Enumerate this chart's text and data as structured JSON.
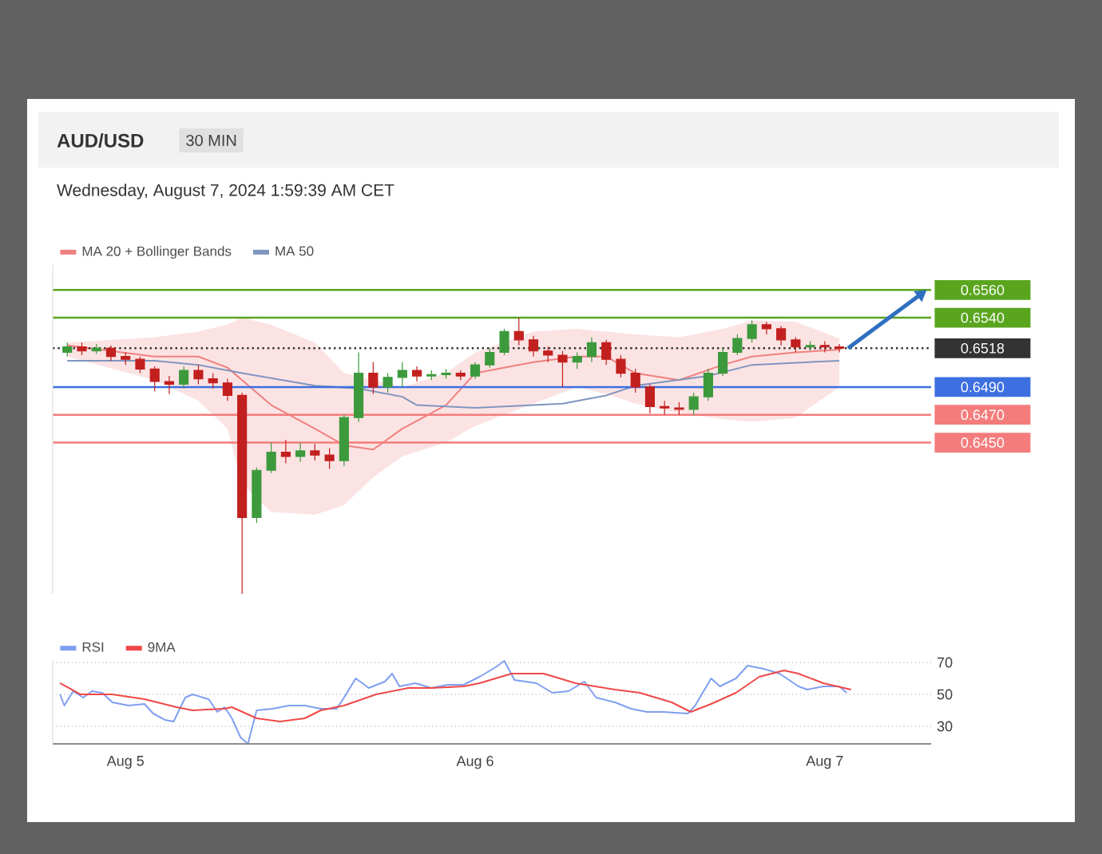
{
  "chart_data": [
    {
      "type": "candlestick",
      "title": "AUD/USD",
      "subtitle": "Wednesday, August 7, 2024 1:59:39 AM CET",
      "annotations": [
        "30 MIN"
      ],
      "x": [
        "2024-08-04T20:00",
        "2024-08-04T21:00",
        "2024-08-04T22:00",
        "2024-08-04T23:00",
        "2024-08-05T00:00",
        "2024-08-05T01:00",
        "2024-08-05T02:00",
        "2024-08-05T03:00",
        "2024-08-05T04:00",
        "2024-08-05T05:00",
        "2024-08-05T06:00",
        "2024-08-05T07:00",
        "2024-08-05T08:00",
        "2024-08-05T09:00",
        "2024-08-05T10:00",
        "2024-08-05T11:00",
        "2024-08-05T12:00",
        "2024-08-05T13:00",
        "2024-08-05T14:00",
        "2024-08-05T15:00",
        "2024-08-05T16:00",
        "2024-08-05T17:00",
        "2024-08-05T18:00",
        "2024-08-05T19:00",
        "2024-08-05T20:00",
        "2024-08-05T21:00",
        "2024-08-05T22:00",
        "2024-08-05T23:00",
        "2024-08-06T00:00",
        "2024-08-06T01:00",
        "2024-08-06T02:00",
        "2024-08-06T03:00",
        "2024-08-06T04:00",
        "2024-08-06T05:00",
        "2024-08-06T06:00",
        "2024-08-06T07:00",
        "2024-08-06T08:00",
        "2024-08-06T09:00",
        "2024-08-06T10:00",
        "2024-08-06T11:00",
        "2024-08-06T12:00",
        "2024-08-06T13:00",
        "2024-08-06T14:00",
        "2024-08-06T15:00",
        "2024-08-06T16:00",
        "2024-08-06T17:00",
        "2024-08-06T18:00",
        "2024-08-06T19:00",
        "2024-08-06T20:00",
        "2024-08-06T21:00",
        "2024-08-06T22:00",
        "2024-08-06T23:00",
        "2024-08-07T00:00",
        "2024-08-07T01:00"
      ],
      "ohlc": [
        [
          0.6515,
          0.6522,
          0.6512,
          0.6519
        ],
        [
          0.6519,
          0.6522,
          0.6513,
          0.6516
        ],
        [
          0.6516,
          0.6521,
          0.6514,
          0.6518
        ],
        [
          0.6518,
          0.652,
          0.6509,
          0.6512
        ],
        [
          0.6512,
          0.6515,
          0.6506,
          0.651
        ],
        [
          0.651,
          0.6512,
          0.65,
          0.6503
        ],
        [
          0.6503,
          0.6505,
          0.6487,
          0.6494
        ],
        [
          0.6494,
          0.6498,
          0.6485,
          0.6492
        ],
        [
          0.6492,
          0.6505,
          0.6489,
          0.6502
        ],
        [
          0.6502,
          0.6506,
          0.6492,
          0.6496
        ],
        [
          0.6496,
          0.65,
          0.6489,
          0.6493
        ],
        [
          0.6493,
          0.6496,
          0.648,
          0.6484
        ],
        [
          0.6484,
          0.6486,
          0.6341,
          0.6396
        ],
        [
          0.6396,
          0.6432,
          0.6392,
          0.643
        ],
        [
          0.643,
          0.645,
          0.6428,
          0.6443
        ],
        [
          0.6443,
          0.6452,
          0.6435,
          0.644
        ],
        [
          0.644,
          0.645,
          0.6436,
          0.6444
        ],
        [
          0.6444,
          0.6449,
          0.6437,
          0.6441
        ],
        [
          0.6441,
          0.6446,
          0.6431,
          0.6437
        ],
        [
          0.6437,
          0.647,
          0.6433,
          0.6468
        ],
        [
          0.6468,
          0.6515,
          0.6465,
          0.65
        ],
        [
          0.65,
          0.6508,
          0.6485,
          0.649
        ],
        [
          0.649,
          0.65,
          0.6486,
          0.6497
        ],
        [
          0.6497,
          0.6508,
          0.649,
          0.6502
        ],
        [
          0.6502,
          0.6505,
          0.6494,
          0.6498
        ],
        [
          0.6498,
          0.6502,
          0.6495,
          0.6499
        ],
        [
          0.6499,
          0.6503,
          0.6496,
          0.65
        ],
        [
          0.65,
          0.6502,
          0.6495,
          0.6498
        ],
        [
          0.6498,
          0.6508,
          0.6496,
          0.6506
        ],
        [
          0.6506,
          0.6518,
          0.6504,
          0.6515
        ],
        [
          0.6515,
          0.6532,
          0.6513,
          0.653
        ],
        [
          0.653,
          0.654,
          0.652,
          0.6524
        ],
        [
          0.6524,
          0.6527,
          0.6512,
          0.6516
        ],
        [
          0.6516,
          0.6519,
          0.6508,
          0.6513
        ],
        [
          0.6513,
          0.6516,
          0.649,
          0.6508
        ],
        [
          0.6508,
          0.6515,
          0.6503,
          0.6512
        ],
        [
          0.6512,
          0.6526,
          0.6508,
          0.6522
        ],
        [
          0.6522,
          0.6524,
          0.6506,
          0.651
        ],
        [
          0.651,
          0.6513,
          0.6497,
          0.65
        ],
        [
          0.65,
          0.6503,
          0.6486,
          0.649
        ],
        [
          0.649,
          0.6492,
          0.6471,
          0.6476
        ],
        [
          0.6476,
          0.648,
          0.647,
          0.6475
        ],
        [
          0.6475,
          0.6479,
          0.647,
          0.6474
        ],
        [
          0.6474,
          0.6486,
          0.647,
          0.6483
        ],
        [
          0.6483,
          0.6503,
          0.648,
          0.65
        ],
        [
          0.65,
          0.6518,
          0.6498,
          0.6515
        ],
        [
          0.6515,
          0.6528,
          0.6513,
          0.6525
        ],
        [
          0.6525,
          0.6538,
          0.6522,
          0.6535
        ],
        [
          0.6535,
          0.6537,
          0.6528,
          0.6532
        ],
        [
          0.6532,
          0.6534,
          0.652,
          0.6524
        ],
        [
          0.6524,
          0.6526,
          0.6515,
          0.6519
        ],
        [
          0.6519,
          0.6523,
          0.6516,
          0.652
        ],
        [
          0.652,
          0.6523,
          0.6515,
          0.6519
        ],
        [
          0.6519,
          0.6521,
          0.6515,
          0.6518
        ]
      ],
      "series": [
        {
          "type": "line",
          "name": "MA 20 + Bollinger Bands",
          "color": "#f08080",
          "x": [
            "2024-08-04T20:00",
            "2024-08-05T02:00",
            "2024-08-05T05:00",
            "2024-08-05T07:00",
            "2024-08-05T08:00",
            "2024-08-05T10:00",
            "2024-08-05T13:00",
            "2024-08-05T15:00",
            "2024-08-05T17:00",
            "2024-08-05T19:00",
            "2024-08-05T22:00",
            "2024-08-06T00:00",
            "2024-08-06T04:00",
            "2024-08-06T07:00",
            "2024-08-06T09:00",
            "2024-08-06T11:00",
            "2024-08-06T14:00",
            "2024-08-06T17:00",
            "2024-08-06T19:00",
            "2024-08-06T22:00",
            "2024-08-07T01:00"
          ],
          "values": [
            0.652,
            0.6512,
            0.6512,
            0.6504,
            0.6495,
            0.6477,
            0.646,
            0.6448,
            0.6445,
            0.646,
            0.6477,
            0.65,
            0.6508,
            0.6512,
            0.6512,
            0.65,
            0.6495,
            0.6506,
            0.6512,
            0.6515,
            0.6517
          ],
          "upper": [
            0.6522,
            0.6526,
            0.653,
            0.6535,
            0.654,
            0.6535,
            0.6522,
            0.65,
            0.6495,
            0.649,
            0.65,
            0.6515,
            0.653,
            0.6532,
            0.653,
            0.6528,
            0.6526,
            0.6532,
            0.6538,
            0.6537,
            0.6525
          ],
          "lower": [
            0.6512,
            0.6495,
            0.648,
            0.646,
            0.642,
            0.64,
            0.6398,
            0.6405,
            0.6425,
            0.644,
            0.645,
            0.6462,
            0.6478,
            0.649,
            0.6485,
            0.6478,
            0.6471,
            0.6467,
            0.6465,
            0.6468,
            0.649
          ]
        },
        {
          "type": "line",
          "name": "MA 50",
          "color": "#7f95bf",
          "x": [
            "2024-08-04T20:00",
            "2024-08-05T02:00",
            "2024-08-05T05:00",
            "2024-08-05T08:00",
            "2024-08-05T13:00",
            "2024-08-05T16:00",
            "2024-08-05T19:00",
            "2024-08-05T20:00",
            "2024-08-06T00:00",
            "2024-08-06T06:00",
            "2024-08-06T09:00",
            "2024-08-06T11:00",
            "2024-08-06T16:00",
            "2024-08-06T19:00",
            "2024-08-07T01:00"
          ],
          "values": [
            0.6509,
            0.6509,
            0.6506,
            0.65,
            0.6491,
            0.6489,
            0.6483,
            0.6477,
            0.6475,
            0.6478,
            0.6484,
            0.6491,
            0.6498,
            0.6506,
            0.6509
          ]
        }
      ],
      "ref_lines": [
        {
          "axis": "y",
          "value": 0.656,
          "color": "#5aa51e"
        },
        {
          "axis": "y",
          "value": 0.654,
          "color": "#5aa51e"
        },
        {
          "axis": "y",
          "value": 0.6518,
          "color": "#333333",
          "line_style": "dotted"
        },
        {
          "axis": "y",
          "value": 0.649,
          "color": "#3d6fe0"
        },
        {
          "axis": "y",
          "value": 0.647,
          "color": "#f47c7c"
        },
        {
          "axis": "y",
          "value": 0.645,
          "color": "#f47c7c"
        }
      ],
      "yticks": [
        {
          "value": 0.645,
          "label": "0.6450"
        },
        {
          "value": 0.647,
          "label": "0.6470"
        },
        {
          "value": 0.649,
          "label": "0.6490"
        },
        {
          "value": 0.6518,
          "label": "0.6518"
        },
        {
          "value": 0.654,
          "label": "0.6540"
        },
        {
          "value": 0.656,
          "label": "0.6560"
        }
      ],
      "xlim": [
        "2024-08-04T19:00",
        "2024-08-07T07:18"
      ],
      "ylim": [
        0.6341,
        0.6578
      ],
      "legend": "top left"
    },
    {
      "type": "line",
      "xlim": [
        "2024-08-04T19:00",
        "2024-08-07T07:18"
      ],
      "ylim": [
        19,
        71
      ],
      "xticks": [
        {
          "value": "2024-08-05",
          "label": "Aug 5"
        },
        {
          "value": "2024-08-06",
          "label": "Aug 6"
        },
        {
          "value": "2024-08-07",
          "label": "Aug 7"
        }
      ],
      "yticks": [
        30,
        50,
        70
      ],
      "grid": "y",
      "legend": "top left",
      "series": [
        {
          "name": "RSI",
          "color": "#7f9ff0",
          "x": [
            "2024-08-04T19:30",
            "2024-08-04T19:48",
            "2024-08-04T20:24",
            "2024-08-04T21:06",
            "2024-08-04T21:42",
            "2024-08-04T22:24",
            "2024-08-04T23:06",
            "2024-08-05T00:12",
            "2024-08-05T01:18",
            "2024-08-05T01:54",
            "2024-08-05T02:42",
            "2024-08-05T03:18",
            "2024-08-05T04:06",
            "2024-08-05T04:36",
            "2024-08-05T05:42",
            "2024-08-05T06:18",
            "2024-08-05T06:48",
            "2024-08-05T07:18",
            "2024-08-05T07:54",
            "2024-08-05T08:24",
            "2024-08-05T09:00",
            "2024-08-05T10:06",
            "2024-08-05T11:12",
            "2024-08-05T12:18",
            "2024-08-05T13:24",
            "2024-08-05T14:30",
            "2024-08-05T15:00",
            "2024-08-05T15:48",
            "2024-08-05T16:42",
            "2024-08-05T17:48",
            "2024-08-05T18:18",
            "2024-08-05T18:48",
            "2024-08-05T19:54",
            "2024-08-05T21:00",
            "2024-08-05T22:06",
            "2024-08-05T23:12",
            "2024-08-06T00:18",
            "2024-08-06T01:24",
            "2024-08-06T02:00",
            "2024-08-06T02:42",
            "2024-08-06T04:12",
            "2024-08-06T05:18",
            "2024-08-06T06:24",
            "2024-08-06T07:30",
            "2024-08-06T08:18",
            "2024-08-06T09:36",
            "2024-08-06T10:42",
            "2024-08-06T11:48",
            "2024-08-06T12:54",
            "2024-08-06T14:36",
            "2024-08-06T15:06",
            "2024-08-06T16:12",
            "2024-08-06T16:48",
            "2024-08-06T17:54",
            "2024-08-06T18:42",
            "2024-08-06T19:48",
            "2024-08-06T20:54",
            "2024-08-06T22:12",
            "2024-08-06T22:48",
            "2024-08-06T23:54",
            "2024-08-07T01:00",
            "2024-08-07T01:30"
          ],
          "values": [
            50,
            43,
            52,
            48,
            52,
            51,
            45,
            43,
            44,
            38,
            34,
            33,
            48,
            50,
            47,
            39,
            42,
            35,
            23,
            19,
            40,
            41,
            43,
            43,
            41,
            41,
            48,
            60,
            54,
            58,
            63,
            55,
            57,
            54,
            56,
            56,
            61,
            67,
            71,
            59,
            57,
            51,
            52,
            58,
            48,
            45,
            41,
            39,
            39,
            38,
            43,
            60,
            55,
            60,
            68,
            66,
            63,
            55,
            53,
            55,
            55,
            51
          ]
        },
        {
          "name": "9MA",
          "color": "#f04848",
          "x": [
            "2024-08-04T19:30",
            "2024-08-04T20:54",
            "2024-08-04T23:06",
            "2024-08-05T01:18",
            "2024-08-05T03:30",
            "2024-08-05T04:36",
            "2024-08-05T06:48",
            "2024-08-05T07:18",
            "2024-08-05T09:00",
            "2024-08-05T10:36",
            "2024-08-05T12:18",
            "2024-08-05T13:24",
            "2024-08-05T15:00",
            "2024-08-05T17:12",
            "2024-08-05T19:24",
            "2024-08-05T21:00",
            "2024-08-05T23:12",
            "2024-08-06T00:18",
            "2024-08-06T02:30",
            "2024-08-06T04:42",
            "2024-08-06T06:54",
            "2024-08-06T09:36",
            "2024-08-06T11:18",
            "2024-08-06T13:30",
            "2024-08-06T14:48",
            "2024-08-06T16:12",
            "2024-08-06T17:54",
            "2024-08-06T19:30",
            "2024-08-06T21:12",
            "2024-08-06T22:12",
            "2024-08-06T23:54",
            "2024-08-07T01:48"
          ],
          "values": [
            57,
            50,
            50,
            47,
            42,
            40,
            41,
            42,
            35,
            33,
            35,
            40,
            43,
            50,
            54,
            54,
            55,
            57,
            63,
            63,
            57,
            53,
            51,
            45,
            39,
            44,
            51,
            61,
            65,
            63,
            57,
            53
          ]
        }
      ]
    }
  ]
}
